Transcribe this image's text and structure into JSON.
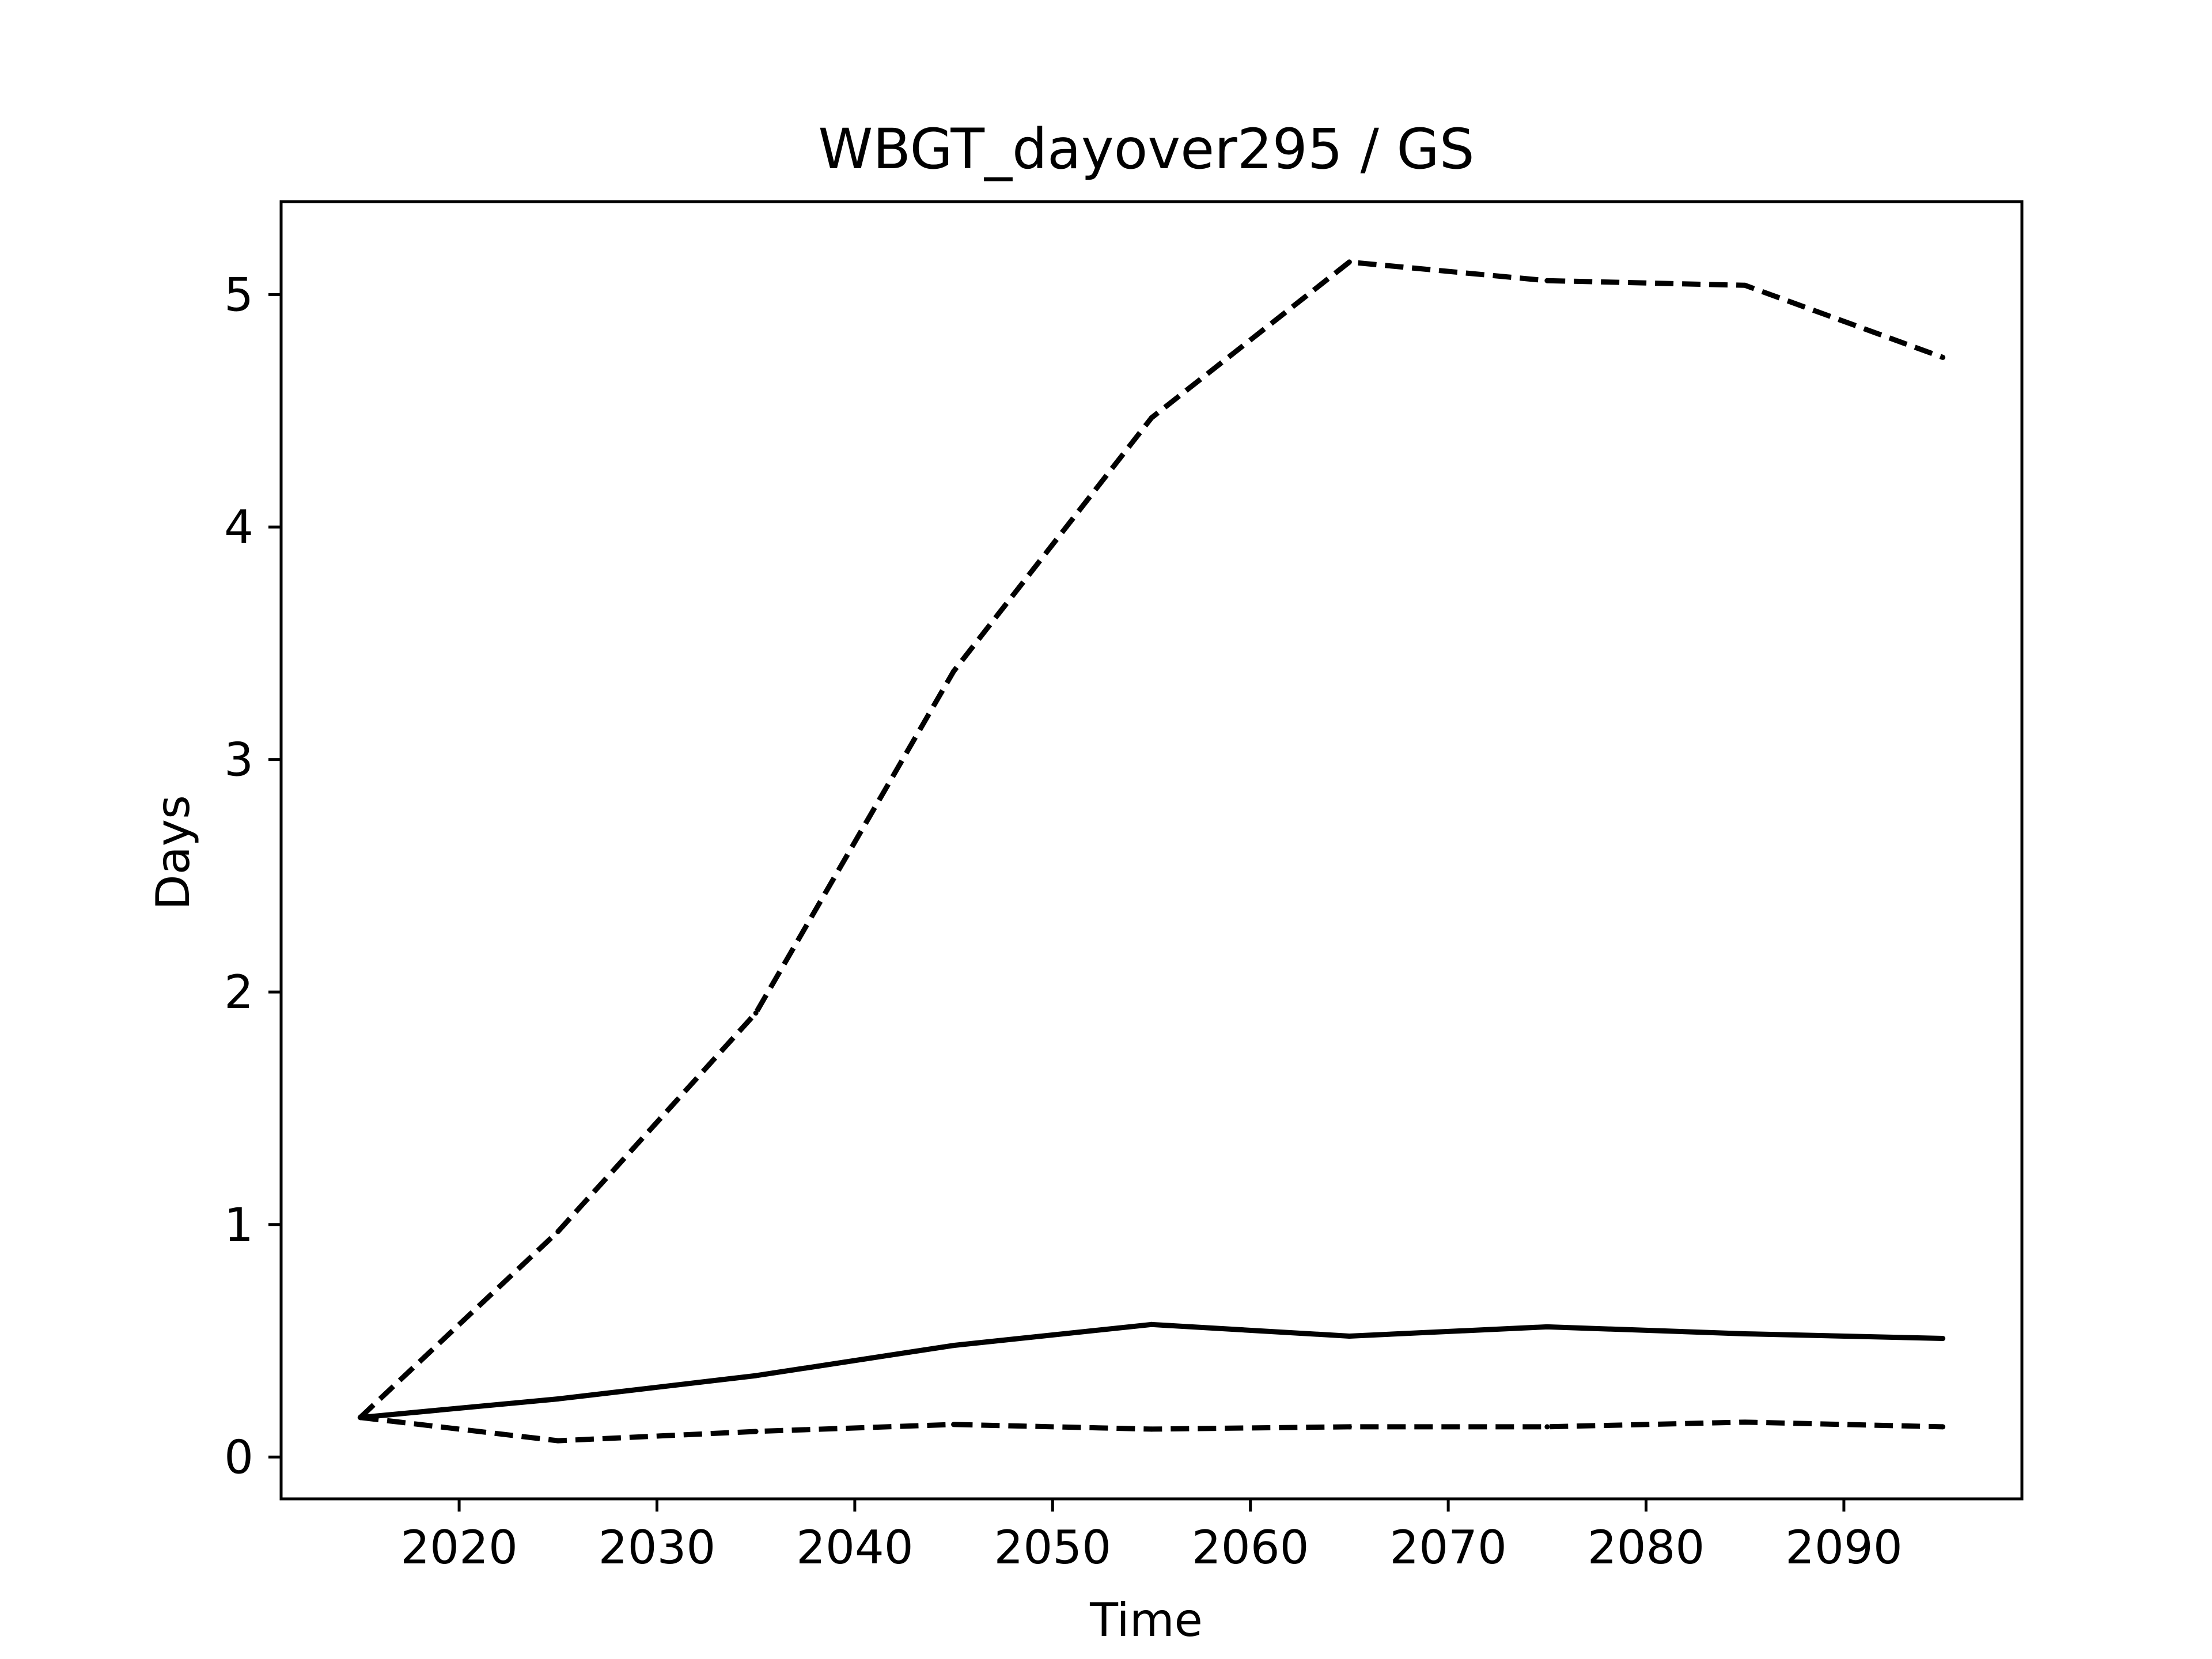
{
  "chart_data": {
    "type": "line",
    "title": "WBGT_dayover295 / GS",
    "xlabel": "Time",
    "ylabel": "Days",
    "xlim": [
      2011,
      2099
    ],
    "ylim": [
      -0.18,
      5.4
    ],
    "xticks": [
      2020,
      2030,
      2040,
      2050,
      2060,
      2070,
      2080,
      2090
    ],
    "yticks": [
      0,
      1,
      2,
      3,
      4,
      5
    ],
    "grid": false,
    "legend": null,
    "x": [
      2015,
      2025,
      2035,
      2045,
      2055,
      2065,
      2075,
      2085,
      2095
    ],
    "series": [
      {
        "style": "solid",
        "color": "#000000",
        "values": [
          0.17,
          0.25,
          0.35,
          0.48,
          0.57,
          0.52,
          0.56,
          0.53,
          0.51
        ]
      },
      {
        "style": "dashed",
        "color": "#000000",
        "values": [
          0.17,
          0.97,
          1.91,
          3.38,
          4.47,
          5.14,
          5.06,
          5.04,
          4.73
        ]
      },
      {
        "style": "dashed",
        "color": "#000000",
        "values": [
          0.17,
          0.07,
          0.11,
          0.14,
          0.12,
          0.13,
          0.13,
          0.15,
          0.13
        ]
      }
    ]
  }
}
